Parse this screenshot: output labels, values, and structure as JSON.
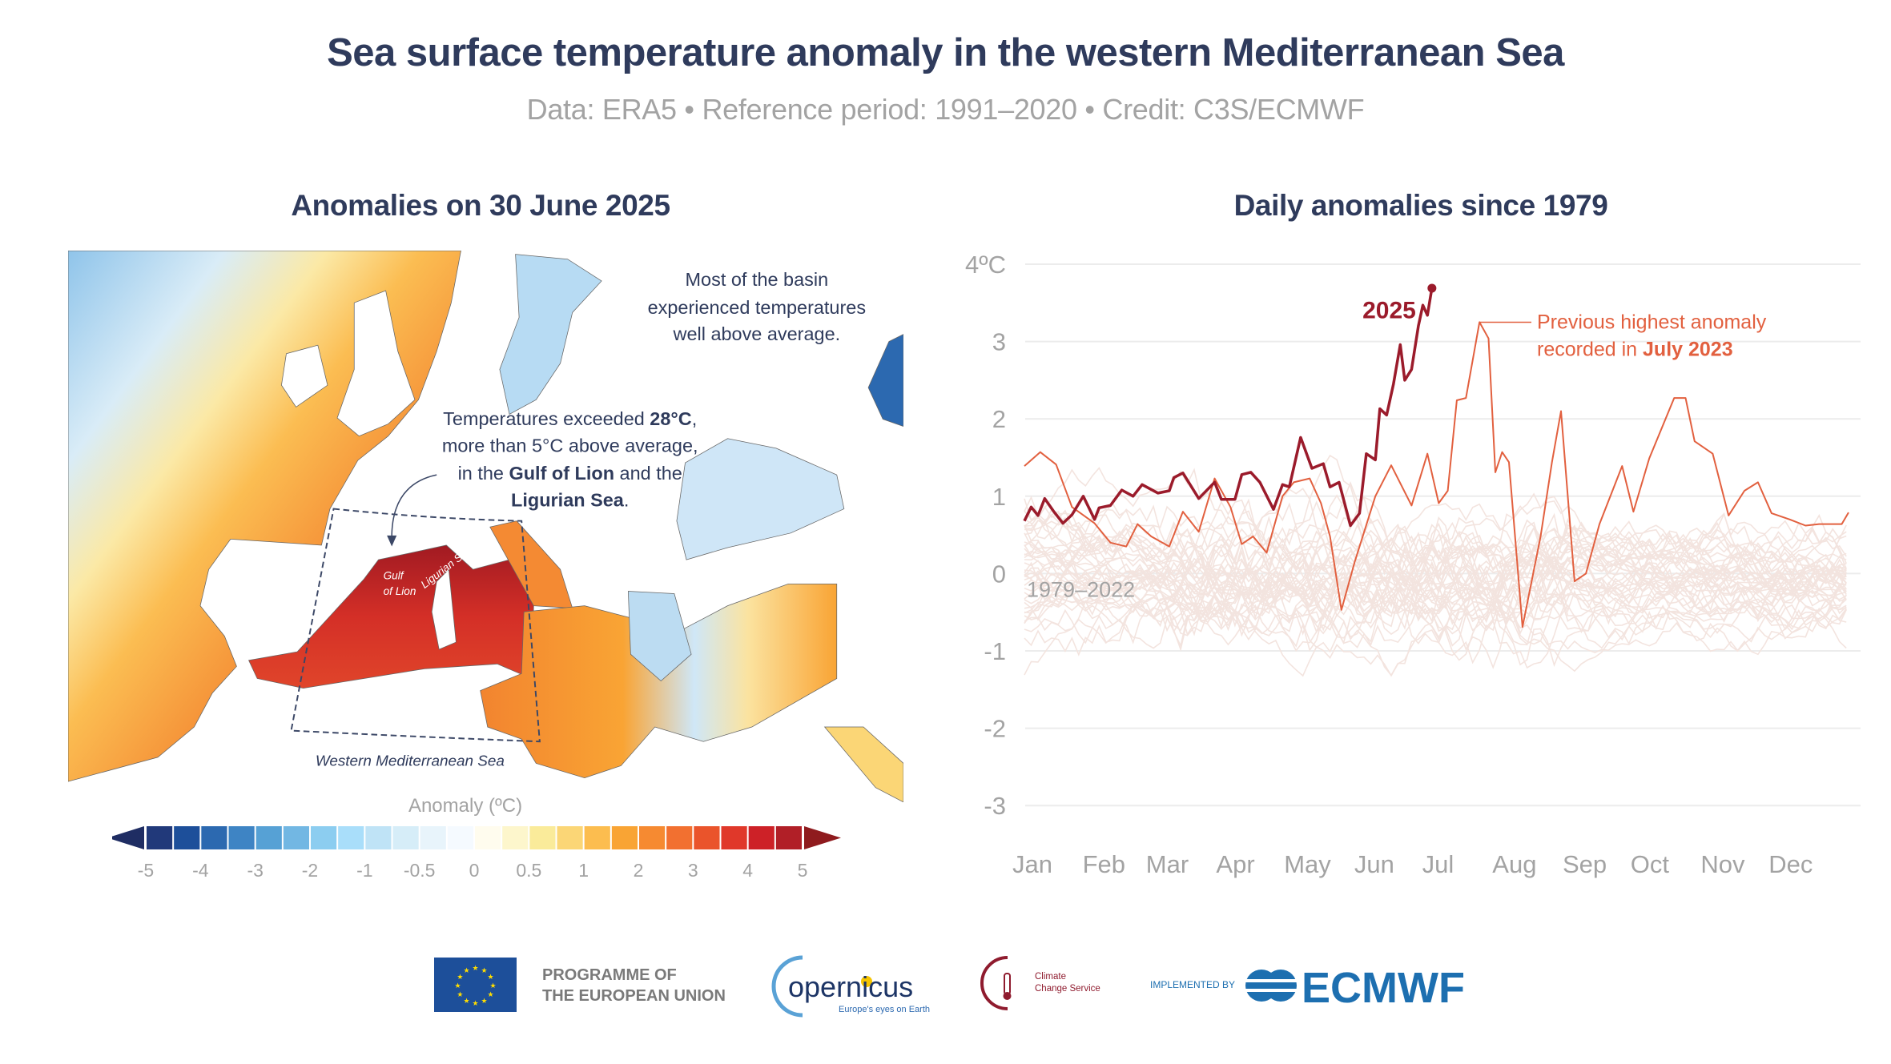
{
  "header": {
    "title": "Sea surface temperature anomaly in the western Mediterranean Sea",
    "subtitle": "Data: ERA5 • Reference period: 1991–2020 • Credit: C3S/ECMWF"
  },
  "map": {
    "title": "Anomalies on 30 June 2025",
    "annotation_basin": [
      "Most of the basin",
      "experienced temperatures",
      "well above average."
    ],
    "annotation_hot": {
      "line1_pre": "Temperatures exceeded ",
      "line1_bold": "28°C",
      "line1_post": ",",
      "line2": "more than 5°C above average,",
      "line3_pre": "in the ",
      "line3_bold": "Gulf of Lion",
      "line3_post": " and the",
      "line4_bold": "Ligurian Sea",
      "line4_post": "."
    },
    "label_gulf": [
      "Gulf",
      "of Lion"
    ],
    "label_ligurian": "Ligurian Sea",
    "label_region": "Western Mediterranean Sea",
    "colorbar": {
      "title": "Anomaly (ºC)",
      "ticks": [
        "-5",
        "-4",
        "-3",
        "-2",
        "-1",
        "-0.5",
        "0",
        "0.5",
        "1",
        "2",
        "3",
        "4",
        "5"
      ],
      "colors": [
        "#21397a",
        "#1d4f9a",
        "#2c69b0",
        "#3e84c4",
        "#56a1d5",
        "#72b7e3",
        "#8ccdf0",
        "#a9defa",
        "#bfe3f6",
        "#d6edf8",
        "#e8f4fb",
        "#f5faff",
        "#fffcee",
        "#fdf6cc",
        "#faeb9a",
        "#fbd676",
        "#fcbd4f",
        "#f9a434",
        "#f68a31",
        "#f27030",
        "#ea542b",
        "#e0382a",
        "#cd2127",
        "#b11f27"
      ],
      "under_color": "#1f2d63",
      "over_color": "#8f1b1e"
    }
  },
  "chart_data": {
    "type": "line",
    "title": "Daily anomalies since 1979",
    "ylim": [
      -3,
      4
    ],
    "yticks": [
      "4ºC",
      "3",
      "2",
      "1",
      "0",
      "-1",
      "-2",
      "-3"
    ],
    "ytick_values": [
      4,
      3,
      2,
      1,
      0,
      -1,
      -2,
      -3
    ],
    "xticks": [
      {
        "label": "Jan",
        "date": "01-01"
      },
      {
        "label": "Feb",
        "date": "02-01"
      },
      {
        "label": "Mar",
        "date": "03-01"
      },
      {
        "label": "Apr",
        "date": "04-01"
      },
      {
        "label": "May",
        "date": "05-01"
      },
      {
        "label": "Jun",
        "date": "06-01"
      },
      {
        "label": "Jul",
        "date": "07-01"
      },
      {
        "label": "Aug",
        "date": "08-01"
      },
      {
        "label": "Sep",
        "date": "09-01"
      },
      {
        "label": "Oct",
        "date": "10-01"
      },
      {
        "label": "Nov",
        "date": "11-01"
      },
      {
        "label": "Dec",
        "date": "12-01"
      }
    ],
    "grid": true,
    "background_series_label": "1979–2022",
    "background_color": "#f3e4df",
    "series": [
      {
        "name": "2025",
        "color": "#9b1b2b",
        "points": [
          [
            "01-01",
            0.68
          ],
          [
            "01-04",
            0.86
          ],
          [
            "01-07",
            0.75
          ],
          [
            "01-10",
            0.97
          ],
          [
            "01-14",
            0.8
          ],
          [
            "01-18",
            0.65
          ],
          [
            "01-22",
            0.76
          ],
          [
            "01-27",
            1.0
          ],
          [
            "02-01",
            0.7
          ],
          [
            "02-03",
            0.85
          ],
          [
            "02-08",
            0.88
          ],
          [
            "02-13",
            1.08
          ],
          [
            "02-18",
            1.0
          ],
          [
            "02-22",
            1.15
          ],
          [
            "03-01",
            1.04
          ],
          [
            "03-06",
            1.07
          ],
          [
            "03-08",
            1.24
          ],
          [
            "03-12",
            1.3
          ],
          [
            "03-19",
            0.97
          ],
          [
            "03-26",
            1.18
          ],
          [
            "03-29",
            0.96
          ],
          [
            "04-04",
            0.96
          ],
          [
            "04-07",
            1.28
          ],
          [
            "04-11",
            1.31
          ],
          [
            "04-15",
            1.18
          ],
          [
            "04-21",
            0.83
          ],
          [
            "04-25",
            1.15
          ],
          [
            "04-28",
            1.12
          ],
          [
            "05-03",
            1.76
          ],
          [
            "05-08",
            1.36
          ],
          [
            "05-13",
            1.42
          ],
          [
            "05-16",
            1.12
          ],
          [
            "05-20",
            1.18
          ],
          [
            "05-25",
            0.62
          ],
          [
            "05-29",
            0.78
          ],
          [
            "06-01",
            1.55
          ],
          [
            "06-05",
            1.47
          ],
          [
            "06-07",
            2.13
          ],
          [
            "06-10",
            2.05
          ],
          [
            "06-13",
            2.45
          ],
          [
            "06-16",
            2.96
          ],
          [
            "06-18",
            2.5
          ],
          [
            "06-21",
            2.64
          ],
          [
            "06-24",
            3.2
          ],
          [
            "06-26",
            3.47
          ],
          [
            "06-28",
            3.34
          ],
          [
            "06-30",
            3.69
          ]
        ]
      },
      {
        "name": "July 2023",
        "color": "#e2603f",
        "points": [
          [
            "01-01",
            1.39
          ],
          [
            "01-08",
            1.57
          ],
          [
            "01-15",
            1.41
          ],
          [
            "01-22",
            0.86
          ],
          [
            "02-01",
            0.65
          ],
          [
            "02-08",
            0.4
          ],
          [
            "02-15",
            0.35
          ],
          [
            "02-20",
            0.64
          ],
          [
            "02-26",
            0.48
          ],
          [
            "03-06",
            0.35
          ],
          [
            "03-12",
            0.8
          ],
          [
            "03-19",
            0.54
          ],
          [
            "03-26",
            1.23
          ],
          [
            "04-02",
            0.86
          ],
          [
            "04-07",
            0.38
          ],
          [
            "04-12",
            0.48
          ],
          [
            "04-18",
            0.27
          ],
          [
            "04-25",
            1.0
          ],
          [
            "04-30",
            1.18
          ],
          [
            "05-07",
            1.23
          ],
          [
            "05-12",
            0.91
          ],
          [
            "05-16",
            0.48
          ],
          [
            "05-21",
            -0.47
          ],
          [
            "05-27",
            0.16
          ],
          [
            "06-05",
            1.0
          ],
          [
            "06-12",
            1.4
          ],
          [
            "06-21",
            0.88
          ],
          [
            "06-28",
            1.55
          ],
          [
            "07-03",
            0.91
          ],
          [
            "07-07",
            1.07
          ],
          [
            "07-11",
            2.24
          ],
          [
            "07-15",
            2.27
          ],
          [
            "07-21",
            3.25
          ],
          [
            "07-25",
            3.04
          ],
          [
            "07-28",
            1.31
          ],
          [
            "07-31",
            1.57
          ],
          [
            "08-03",
            1.44
          ],
          [
            "08-09",
            -0.69
          ],
          [
            "08-17",
            0.48
          ],
          [
            "08-22",
            1.44
          ],
          [
            "08-26",
            2.1
          ],
          [
            "09-01",
            -0.1
          ],
          [
            "09-06",
            0.0
          ],
          [
            "09-12",
            0.64
          ],
          [
            "09-22",
            1.39
          ],
          [
            "09-27",
            0.8
          ],
          [
            "10-04",
            1.49
          ],
          [
            "10-15",
            2.27
          ],
          [
            "10-20",
            2.27
          ],
          [
            "10-24",
            1.71
          ],
          [
            "11-01",
            1.55
          ],
          [
            "11-08",
            0.75
          ],
          [
            "11-15",
            1.07
          ],
          [
            "11-21",
            1.18
          ],
          [
            "11-27",
            0.78
          ],
          [
            "12-05",
            0.7
          ],
          [
            "12-12",
            0.62
          ],
          [
            "12-18",
            0.64
          ],
          [
            "12-28",
            0.64
          ],
          [
            "12-31",
            0.79
          ]
        ]
      }
    ],
    "annotations": {
      "label_2025": "2025",
      "prev_line1": "Previous highest anomaly",
      "prev_line2_pre": "recorded in ",
      "prev_line2_bold": "July 2023"
    }
  },
  "footer": {
    "eu_line1": "PROGRAMME OF",
    "eu_line2": "THE EUROPEAN UNION",
    "copernicus_name": "opernicus",
    "copernicus_tagline": "Europe's eyes on Earth",
    "c3s_line1": "Climate",
    "c3s_line2": "Change Service",
    "implemented_by": "IMPLEMENTED BY",
    "ecmwf": "ECMWF"
  }
}
